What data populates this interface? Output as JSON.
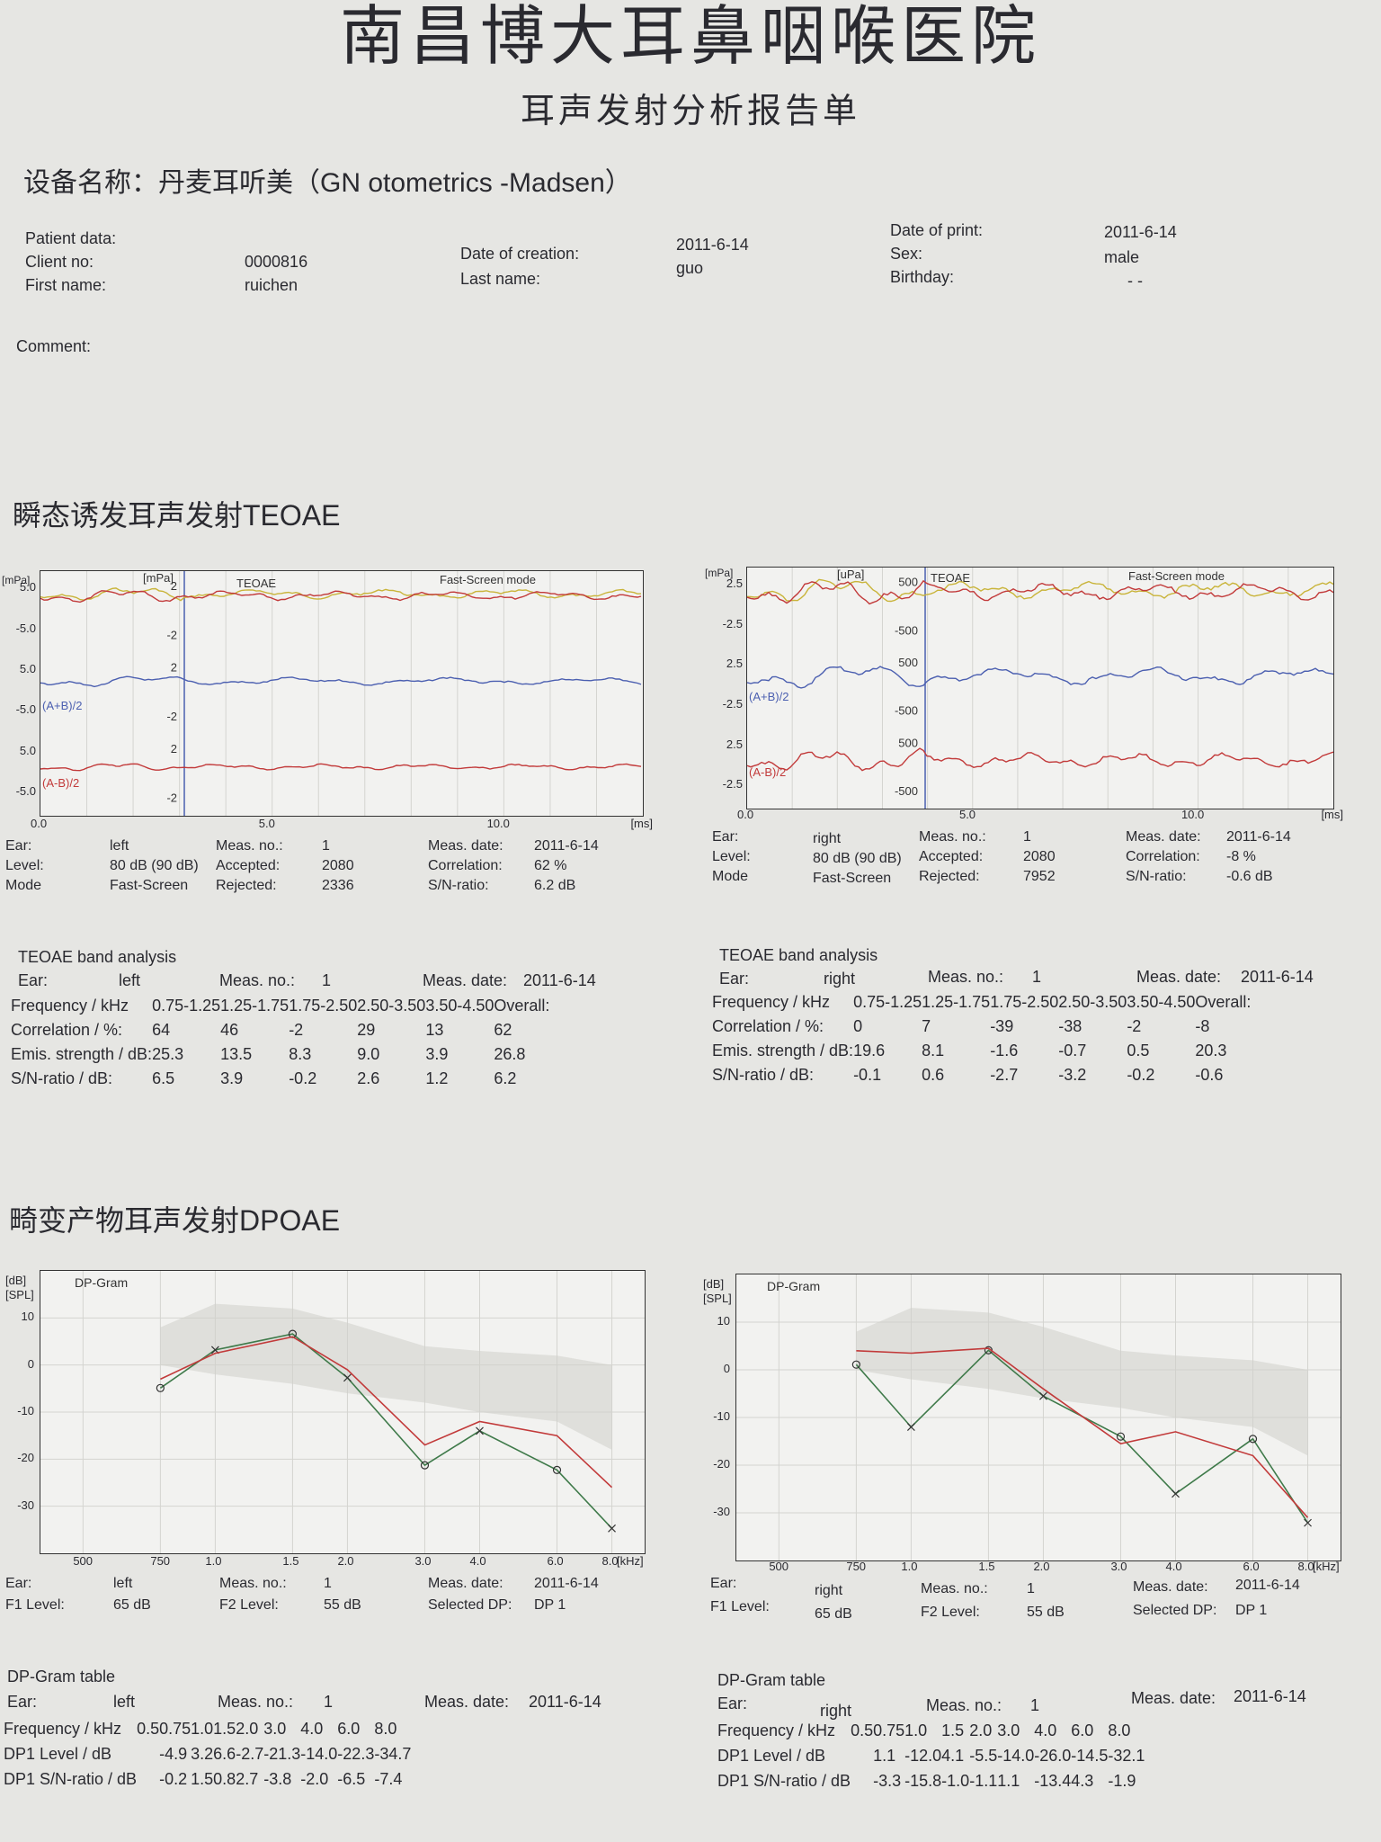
{
  "header": {
    "hospital": "南昌博大耳鼻咽喉医院",
    "report_title": "耳声发射分析报告单",
    "device": "设备名称：丹麦耳听美（GN  otometrics -Madsen）"
  },
  "patient": {
    "patient_data_label": "Patient data:",
    "client_no_label": "Client no:",
    "client_no": "0000816",
    "first_name_label": "First name:",
    "first_name": "ruichen",
    "date_creation_label": "Date of creation:",
    "date_creation": "2011-6-14",
    "last_name_label": "Last name:",
    "last_name": "guo",
    "date_print_label": "Date of print:",
    "date_print": "2011-6-14",
    "sex_label": "Sex:",
    "sex": "male",
    "birthday_label": "Birthday:",
    "birthday": "- -",
    "comment_label": "Comment:"
  },
  "teoae": {
    "section_title": "瞬态诱发耳声发射TEOAE",
    "charts": [
      {
        "side": "left",
        "mpa_label": "[mPa]",
        "inner_unit": "[mPa]",
        "title": "TEOAE",
        "mode_title": "Fast-Screen mode",
        "outer_ticks": [
          "5.0",
          "-5.0",
          "5.0",
          "-5.0",
          "5.0",
          "-5.0"
        ],
        "inner_ticks": [
          "2",
          "-2",
          "2",
          "-2",
          "2",
          "-2"
        ],
        "x_ticks": [
          "0.0",
          "5.0",
          "10.0"
        ],
        "x_unit": "[ms]",
        "label_sum": "(A+B)/2",
        "label_diff": "(A-B)/2"
      },
      {
        "side": "right",
        "mpa_label": "[mPa]",
        "inner_unit": "[uPa]",
        "title": "TEOAE",
        "mode_title": "Fast-Screen mode",
        "outer_ticks": [
          "2.5",
          "-2.5",
          "2.5",
          "-2.5",
          "2.5",
          "-2.5"
        ],
        "inner_ticks": [
          "500",
          "-500",
          "500",
          "-500",
          "500",
          "-500"
        ],
        "x_ticks": [
          "0.0",
          "5.0",
          "10.0"
        ],
        "x_unit": "[ms]",
        "label_sum": "(A+B)/2",
        "label_diff": "(A-B)/2"
      }
    ],
    "meas": [
      {
        "ear_label": "Ear:",
        "ear": "left",
        "level_label": "Level:",
        "level": "80 dB (90 dB)",
        "mode_label": "Mode",
        "mode": "Fast-Screen",
        "measno_label": "Meas. no.:",
        "measno": "1",
        "accepted_label": "Accepted:",
        "accepted": "2080",
        "rejected_label": "Rejected:",
        "rejected": "2336",
        "measdate_label": "Meas. date:",
        "measdate": "2011-6-14",
        "corr_label": "Correlation:",
        "corr": "62 %",
        "sn_label": "S/N-ratio:",
        "sn": "6.2 dB"
      },
      {
        "ear_label": "Ear:",
        "ear": "right",
        "level_label": "Level:",
        "level": "80 dB (90 dB)",
        "mode_label": "Mode",
        "mode": "Fast-Screen",
        "measno_label": "Meas. no.:",
        "measno": "1",
        "accepted_label": "Accepted:",
        "accepted": "2080",
        "rejected_label": "Rejected:",
        "rejected": "7952",
        "measdate_label": "Meas. date:",
        "measdate": "2011-6-14",
        "corr_label": "Correlation:",
        "corr": "-8 %",
        "sn_label": "S/N-ratio:",
        "sn": "-0.6 dB"
      }
    ],
    "band": [
      {
        "title": "TEOAE band analysis",
        "ear_label": "Ear:",
        "ear": "left",
        "measno_label": "Meas. no.:",
        "measno": "1",
        "measdate_label": "Meas. date:",
        "measdate": "2011-6-14",
        "freq_label": "Frequency / kHz",
        "freqs": [
          "0.75-1.25",
          "1.25-1.75",
          "1.75-2.50",
          "2.50-3.50",
          "3.50-4.50",
          "Overall:"
        ],
        "rows": [
          {
            "label": "Correlation / %:",
            "values": [
              "64",
              "46",
              "-2",
              "29",
              "13",
              "62"
            ]
          },
          {
            "label": "Emis. strength / dB:",
            "values": [
              "25.3",
              "13.5",
              "8.3",
              "9.0",
              "3.9",
              "26.8"
            ]
          },
          {
            "label": "S/N-ratio / dB:",
            "values": [
              "6.5",
              "3.9",
              "-0.2",
              "2.6",
              "1.2",
              "6.2"
            ]
          }
        ]
      },
      {
        "title": "TEOAE band analysis",
        "ear_label": "Ear:",
        "ear": "right",
        "measno_label": "Meas. no.:",
        "measno": "1",
        "measdate_label": "Meas. date:",
        "measdate": "2011-6-14",
        "freq_label": "Frequency / kHz",
        "freqs": [
          "0.75-1.25",
          "1.25-1.75",
          "1.75-2.50",
          "2.50-3.50",
          "3.50-4.50",
          "Overall:"
        ],
        "rows": [
          {
            "label": "Correlation / %:",
            "values": [
              "0",
              "7",
              "-39",
              "-38",
              "-2",
              "-8"
            ]
          },
          {
            "label": "Emis. strength / dB:",
            "values": [
              "19.6",
              "8.1",
              "-1.6",
              "-0.7",
              "0.5",
              "20.3"
            ]
          },
          {
            "label": "S/N-ratio / dB:",
            "values": [
              "-0.1",
              "0.6",
              "-2.7",
              "-3.2",
              "-0.2",
              "-0.6"
            ]
          }
        ]
      }
    ]
  },
  "dpoae": {
    "section_title": "畸变产物耳声发射DPOAE",
    "charts": [
      {
        "side": "left",
        "db_label": "[dB]",
        "spl_label": "[SPL]",
        "title": "DP-Gram",
        "y_ticks": [
          "10",
          "0",
          "-10",
          "-20",
          "-30"
        ],
        "x_ticks": [
          "500",
          "750",
          "1.0",
          "1.5",
          "2.0",
          "3.0",
          "4.0",
          "6.0",
          "8.0"
        ],
        "x_unit": "[kHz]"
      },
      {
        "side": "right",
        "db_label": "[dB]",
        "spl_label": "[SPL]",
        "title": "DP-Gram",
        "y_ticks": [
          "10",
          "0",
          "-10",
          "-20",
          "-30"
        ],
        "x_ticks": [
          "500",
          "750",
          "1.0",
          "1.5",
          "2.0",
          "3.0",
          "4.0",
          "6.0",
          "8.0"
        ],
        "x_unit": "[kHz]"
      }
    ],
    "meas": [
      {
        "ear_label": "Ear:",
        "ear": "left",
        "f1_label": "F1 Level:",
        "f1": "65 dB",
        "measno_label": "Meas. no.:",
        "measno": "1",
        "f2_label": "F2 Level:",
        "f2": "55 dB",
        "measdate_label": "Meas. date:",
        "measdate": "2011-6-14",
        "dp_label": "Selected DP:",
        "dp": "DP 1"
      },
      {
        "ear_label": "Ear:",
        "ear": "right",
        "f1_label": "F1 Level:",
        "f1": "65 dB",
        "measno_label": "Meas. no.:",
        "measno": "1",
        "f2_label": "F2 Level:",
        "f2": "55 dB",
        "measdate_label": "Meas. date:",
        "measdate": "2011-6-14",
        "dp_label": "Selected DP:",
        "dp": "DP 1"
      }
    ],
    "tables": [
      {
        "title": "DP-Gram table",
        "ear_label": "Ear:",
        "ear": "left",
        "measno_label": "Meas. no.:",
        "measno": "1",
        "measdate_label": "Meas. date:",
        "measdate": "2011-6-14",
        "freq_label": "Frequency / kHz",
        "freqs": [
          "0.5",
          "0.75",
          "1.0",
          "1.5",
          "2.0",
          "3.0",
          "4.0",
          "6.0",
          "8.0"
        ],
        "level_label": "DP1 Level / dB",
        "levels": [
          "",
          "-4.9",
          "3.2",
          "6.6",
          "-2.7",
          "-21.3",
          "-14.0",
          "-22.3",
          "-34.7"
        ],
        "sn_label": "DP1 S/N-ratio / dB",
        "sns": [
          "",
          "-0.2",
          "1.5",
          "0.8",
          "2.7",
          "-3.8",
          "-2.0",
          "-6.5",
          "-7.4"
        ]
      },
      {
        "title": "DP-Gram table",
        "ear_label": "Ear:",
        "ear": "right",
        "measno_label": "Meas. no.:",
        "measno": "1",
        "measdate_label": "Meas. date:",
        "measdate": "2011-6-14",
        "freq_label": "Frequency / kHz",
        "freqs": [
          "0.5",
          "0.75",
          "1.0",
          "1.5",
          "2.0",
          "3.0",
          "4.0",
          "6.0",
          "8.0"
        ],
        "level_label": "DP1 Level / dB",
        "levels": [
          "",
          "1.1",
          "-12.0",
          "4.1",
          "-5.5",
          "-14.0",
          "-26.0",
          "-14.5",
          "-32.1"
        ],
        "sn_label": "DP1 S/N-ratio / dB",
        "sns": [
          "",
          "-3.3",
          "-15.8",
          "-1.0",
          "-1.1",
          "1.1",
          "-13.4",
          "4.3",
          "-1.9"
        ]
      }
    ]
  },
  "chart_data": [
    {
      "type": "line",
      "series": [
        {
          "name": "",
          "x": [
            0.75,
            1.0,
            1.5,
            2.0,
            3.0,
            4.0,
            6.0,
            8.0
          ],
          "values": [
            -4.9,
            3.2,
            6.6,
            -2.7,
            -21.3,
            -14.0,
            -22.3,
            -34.7
          ],
          "color": "#3f7a4a"
        },
        {
          "name": "",
          "x": [
            0.75,
            1.0,
            1.5,
            2.0,
            3.0,
            4.0,
            6.0,
            8.0
          ],
          "values": [
            -3,
            2.5,
            6,
            -1,
            -17,
            -12,
            -15,
            -26
          ],
          "color": "#c23a3a"
        }
      ],
      "ylim": [
        -40,
        20
      ],
      "xlim": [
        0.4,
        9.5
      ]
    },
    {
      "type": "line",
      "series": [
        {
          "name": "",
          "x": [
            0.75,
            1.0,
            1.5,
            2.0,
            3.0,
            4.0,
            6.0,
            8.0
          ],
          "values": [
            1.1,
            -12.0,
            4.1,
            -5.5,
            -14.0,
            -26.0,
            -14.5,
            -32.1
          ],
          "color": "#3f7a4a"
        },
        {
          "name": "",
          "x": [
            0.75,
            1.0,
            1.5,
            2.0,
            3.0,
            4.0,
            6.0,
            8.0
          ],
          "values": [
            4,
            3.5,
            4.5,
            -4,
            -15.5,
            -13,
            -18,
            -31
          ],
          "color": "#c23a3a"
        }
      ],
      "ylim": [
        -40,
        20
      ],
      "xlim": [
        0.4,
        9.5
      ]
    }
  ],
  "colors": {
    "ink": "#2a2a30",
    "trace_red": "#c23a3a",
    "trace_yellow": "#c9b43a",
    "trace_blue": "#4b5fb0",
    "trace_green": "#3f7a4a",
    "norm_band": "#cfcfca"
  }
}
